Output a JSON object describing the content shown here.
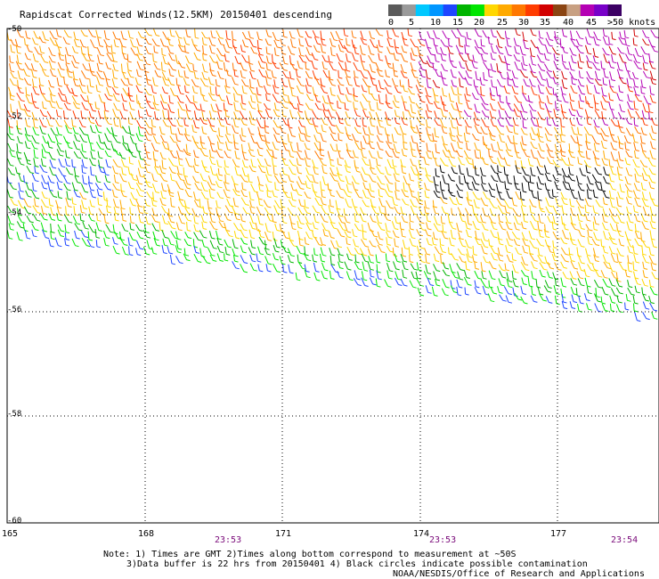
{
  "title": "Rapidscat Corrected Winds(12.5KM) 20150401 descending",
  "legend": {
    "colors": [
      "#5a5a5a",
      "#9a9a9a",
      "#00c8ff",
      "#0096ff",
      "#1e46ff",
      "#00b400",
      "#00e600",
      "#ffd700",
      "#ffaa00",
      "#ff7800",
      "#ff3c00",
      "#d20000",
      "#8b4513",
      "#c8a082",
      "#b400b4",
      "#7800c8",
      "#3c0064"
    ],
    "labels": [
      "0",
      "5",
      "10",
      "15",
      "20",
      "25",
      "30",
      "35",
      "40",
      "45",
      ">50 knots"
    ]
  },
  "lon_labels": [
    "165",
    "168",
    "171",
    "174",
    "177"
  ],
  "lat_labels": [
    "-50",
    "-52",
    "-54",
    "-56",
    "-58",
    "-60"
  ],
  "times": [
    "23:53",
    "23:53",
    "23:54"
  ],
  "notes": {
    "line1": "Note: 1) Times are GMT 2)Times along bottom correspond to measurement at ~50S",
    "line2": "3)Data buffer is 22 hrs from 20150401 4) Black circles indicate possible contamination",
    "credit": "NOAA/NESDIS/Office of Research and Applications"
  }
}
